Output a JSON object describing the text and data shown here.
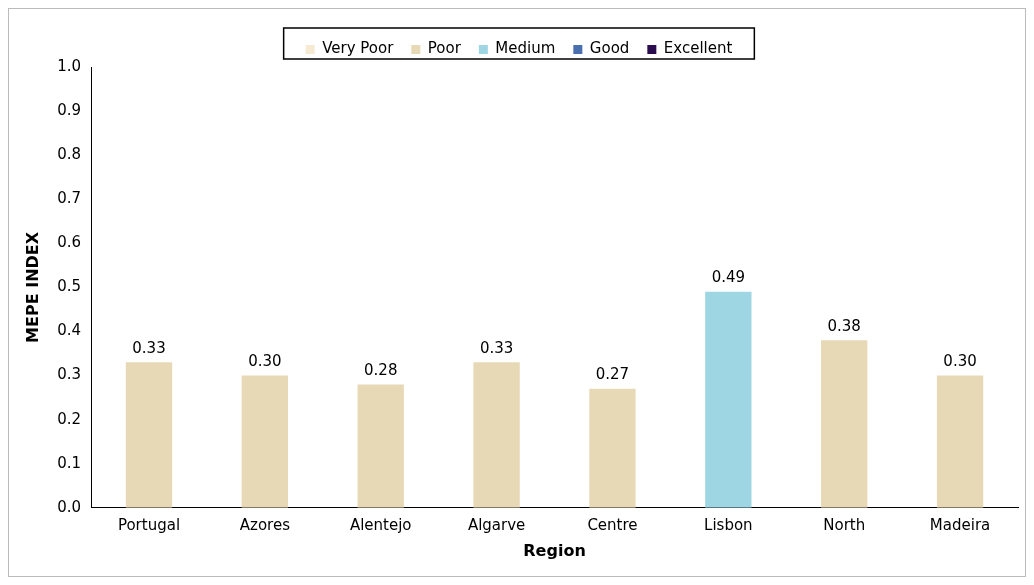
{
  "chart_data": {
    "type": "bar",
    "xlabel": "Region",
    "ylabel": "MEPE INDEX",
    "categories": [
      "Portugal",
      "Azores",
      "Alentejo",
      "Algarve",
      "Centre",
      "Lisbon",
      "North",
      "Madeira"
    ],
    "stacked": true,
    "legend": "top",
    "grid": false,
    "ylim": [
      0,
      1
    ],
    "yticks": [
      {
        "value": 0,
        "label": "0.0"
      },
      0.1,
      0.2,
      0.3,
      0.4,
      0.5,
      0.6,
      0.7,
      0.8,
      0.9,
      {
        "value": 1,
        "label": "1.0"
      }
    ],
    "series": [
      {
        "name": "Very Poor",
        "color": "#f6ead2",
        "values": [
          null,
          null,
          null,
          null,
          null,
          null,
          null,
          null
        ]
      },
      {
        "name": "Poor",
        "color": "#e8d9b6",
        "values": [
          0.33,
          0.3,
          0.28,
          0.33,
          0.27,
          null,
          0.38,
          0.3
        ],
        "value_labels": [
          "0.33",
          "0.30",
          "0.28",
          "0.33",
          "0.27",
          null,
          "0.38",
          "0.30"
        ]
      },
      {
        "name": "Medium",
        "color": "#9fd6e4",
        "values": [
          null,
          null,
          null,
          null,
          null,
          0.49,
          null,
          null
        ],
        "value_labels": [
          null,
          null,
          null,
          null,
          null,
          "0.49",
          null,
          null
        ]
      },
      {
        "name": "Good",
        "color": "#4a6fae",
        "values": [
          null,
          null,
          null,
          null,
          null,
          null,
          null,
          null
        ]
      },
      {
        "name": "Excellent",
        "color": "#2b0c4e",
        "values": [
          null,
          null,
          null,
          null,
          null,
          null,
          null,
          null
        ]
      }
    ]
  }
}
